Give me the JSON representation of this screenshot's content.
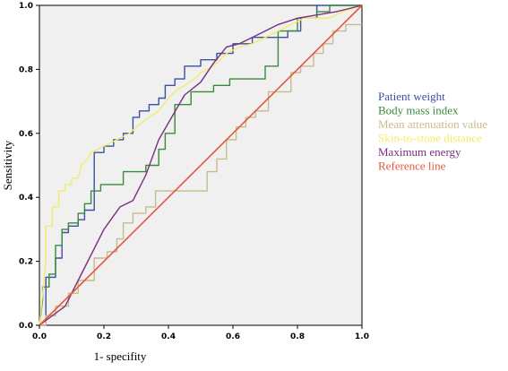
{
  "chart_data": {
    "type": "line",
    "xlabel": "1- specifity",
    "ylabel": "Sensitivity",
    "xlim": [
      0,
      1
    ],
    "ylim": [
      0,
      1
    ],
    "xticks": [
      "0.0",
      "0.2",
      "0.4",
      "0.6",
      "0.8",
      "1.0"
    ],
    "yticks": [
      "0.0",
      "0.2",
      "0.4",
      "0.6",
      "0.8",
      "1.0"
    ],
    "grid": false,
    "legend_placement": "right",
    "background": "#f0f0f0",
    "series": [
      {
        "name": "Patient weight",
        "color": "#3b4fa6",
        "x": [
          0,
          0.02,
          0.02,
          0.05,
          0.05,
          0.07,
          0.07,
          0.09,
          0.09,
          0.12,
          0.12,
          0.14,
          0.14,
          0.17,
          0.17,
          0.2,
          0.2,
          0.23,
          0.23,
          0.26,
          0.26,
          0.29,
          0.29,
          0.31,
          0.31,
          0.34,
          0.34,
          0.37,
          0.37,
          0.39,
          0.39,
          0.42,
          0.42,
          0.45,
          0.45,
          0.48,
          0.48,
          0.5,
          0.5,
          0.55,
          0.55,
          0.6,
          0.6,
          0.66,
          0.66,
          0.72,
          0.72,
          0.77,
          0.77,
          0.81,
          0.81,
          0.86,
          0.86,
          0.92,
          0.92,
          0.97,
          0.97,
          1.0
        ],
        "y": [
          0,
          0,
          0.15,
          0.15,
          0.21,
          0.21,
          0.29,
          0.29,
          0.31,
          0.31,
          0.33,
          0.33,
          0.36,
          0.36,
          0.54,
          0.54,
          0.56,
          0.56,
          0.58,
          0.58,
          0.6,
          0.6,
          0.65,
          0.65,
          0.67,
          0.67,
          0.69,
          0.69,
          0.71,
          0.71,
          0.75,
          0.75,
          0.77,
          0.77,
          0.81,
          0.81,
          0.81,
          0.81,
          0.83,
          0.83,
          0.85,
          0.85,
          0.88,
          0.88,
          0.9,
          0.9,
          0.9,
          0.9,
          0.92,
          0.92,
          0.96,
          0.96,
          1.0,
          1.0,
          1.0,
          1.0,
          1.0,
          1.0
        ]
      },
      {
        "name": "Body mass index",
        "color": "#3a8a3a",
        "x": [
          0,
          0.01,
          0.01,
          0.03,
          0.03,
          0.05,
          0.05,
          0.07,
          0.07,
          0.09,
          0.09,
          0.12,
          0.12,
          0.14,
          0.14,
          0.16,
          0.16,
          0.19,
          0.19,
          0.26,
          0.26,
          0.33,
          0.33,
          0.37,
          0.37,
          0.39,
          0.39,
          0.42,
          0.42,
          0.47,
          0.47,
          0.54,
          0.54,
          0.59,
          0.59,
          0.7,
          0.7,
          0.74,
          0.74,
          0.8,
          0.8,
          0.86,
          0.86,
          0.9,
          0.9,
          1.0
        ],
        "y": [
          0,
          0.08,
          0.12,
          0.12,
          0.16,
          0.16,
          0.25,
          0.25,
          0.3,
          0.3,
          0.32,
          0.32,
          0.35,
          0.35,
          0.38,
          0.38,
          0.42,
          0.42,
          0.44,
          0.44,
          0.48,
          0.48,
          0.5,
          0.5,
          0.55,
          0.55,
          0.6,
          0.6,
          0.69,
          0.69,
          0.73,
          0.73,
          0.75,
          0.75,
          0.77,
          0.77,
          0.81,
          0.81,
          0.92,
          0.92,
          0.96,
          0.96,
          0.98,
          0.98,
          1.0,
          1.0
        ]
      },
      {
        "name": "Mean attenuation value",
        "color": "#c7bb8c",
        "x": [
          0,
          0.02,
          0.02,
          0.05,
          0.05,
          0.09,
          0.09,
          0.12,
          0.12,
          0.17,
          0.17,
          0.21,
          0.21,
          0.24,
          0.24,
          0.26,
          0.26,
          0.29,
          0.29,
          0.33,
          0.33,
          0.36,
          0.36,
          0.4,
          0.4,
          0.44,
          0.44,
          0.52,
          0.52,
          0.55,
          0.55,
          0.58,
          0.58,
          0.61,
          0.61,
          0.64,
          0.64,
          0.67,
          0.67,
          0.71,
          0.71,
          0.74,
          0.74,
          0.78,
          0.78,
          0.81,
          0.81,
          0.85,
          0.85,
          0.88,
          0.88,
          0.91,
          0.91,
          0.95,
          0.95,
          1.0
        ],
        "y": [
          0,
          0,
          0.03,
          0.03,
          0.06,
          0.06,
          0.1,
          0.1,
          0.14,
          0.14,
          0.21,
          0.21,
          0.23,
          0.23,
          0.27,
          0.27,
          0.32,
          0.32,
          0.35,
          0.35,
          0.37,
          0.37,
          0.42,
          0.42,
          0.42,
          0.42,
          0.42,
          0.42,
          0.48,
          0.48,
          0.52,
          0.52,
          0.58,
          0.58,
          0.62,
          0.62,
          0.65,
          0.65,
          0.67,
          0.67,
          0.73,
          0.73,
          0.73,
          0.73,
          0.79,
          0.79,
          0.81,
          0.81,
          0.85,
          0.85,
          0.88,
          0.88,
          0.92,
          0.92,
          0.94,
          0.94
        ]
      },
      {
        "name": "Skin-to-stone distance",
        "color": "#f2ec6a",
        "x": [
          0,
          0.02,
          0.02,
          0.04,
          0.04,
          0.06,
          0.06,
          0.08,
          0.08,
          0.1,
          0.1,
          0.12,
          0.13,
          0.15,
          0.16,
          0.2,
          0.24,
          0.28,
          0.3,
          0.34,
          0.37,
          0.4,
          0.42,
          0.45,
          0.48,
          0.5,
          0.54,
          0.58,
          0.62,
          0.66,
          0.7,
          0.74,
          0.78,
          0.82,
          0.86,
          0.9,
          0.94,
          1.0
        ],
        "y": [
          0,
          0.2,
          0.31,
          0.31,
          0.37,
          0.37,
          0.42,
          0.42,
          0.44,
          0.44,
          0.46,
          0.46,
          0.5,
          0.52,
          0.54,
          0.56,
          0.58,
          0.6,
          0.62,
          0.65,
          0.67,
          0.71,
          0.73,
          0.75,
          0.77,
          0.79,
          0.81,
          0.85,
          0.87,
          0.88,
          0.9,
          0.92,
          0.94,
          0.96,
          0.96,
          0.96,
          0.98,
          1.0
        ]
      },
      {
        "name": "Maximum energy",
        "color": "#7a2f7f",
        "x": [
          0,
          0.08,
          0.12,
          0.16,
          0.2,
          0.25,
          0.29,
          0.33,
          0.37,
          0.41,
          0.45,
          0.5,
          0.54,
          0.58,
          0.62,
          0.66,
          0.7,
          0.74,
          0.8,
          0.86,
          0.92,
          1.0
        ],
        "y": [
          0,
          0.06,
          0.14,
          0.22,
          0.3,
          0.37,
          0.39,
          0.47,
          0.58,
          0.65,
          0.72,
          0.76,
          0.82,
          0.87,
          0.88,
          0.9,
          0.92,
          0.94,
          0.96,
          0.97,
          0.98,
          1.0
        ]
      },
      {
        "name": "Reference line",
        "color": "#e8553b",
        "x": [
          0,
          1
        ],
        "y": [
          0,
          1
        ]
      }
    ]
  }
}
